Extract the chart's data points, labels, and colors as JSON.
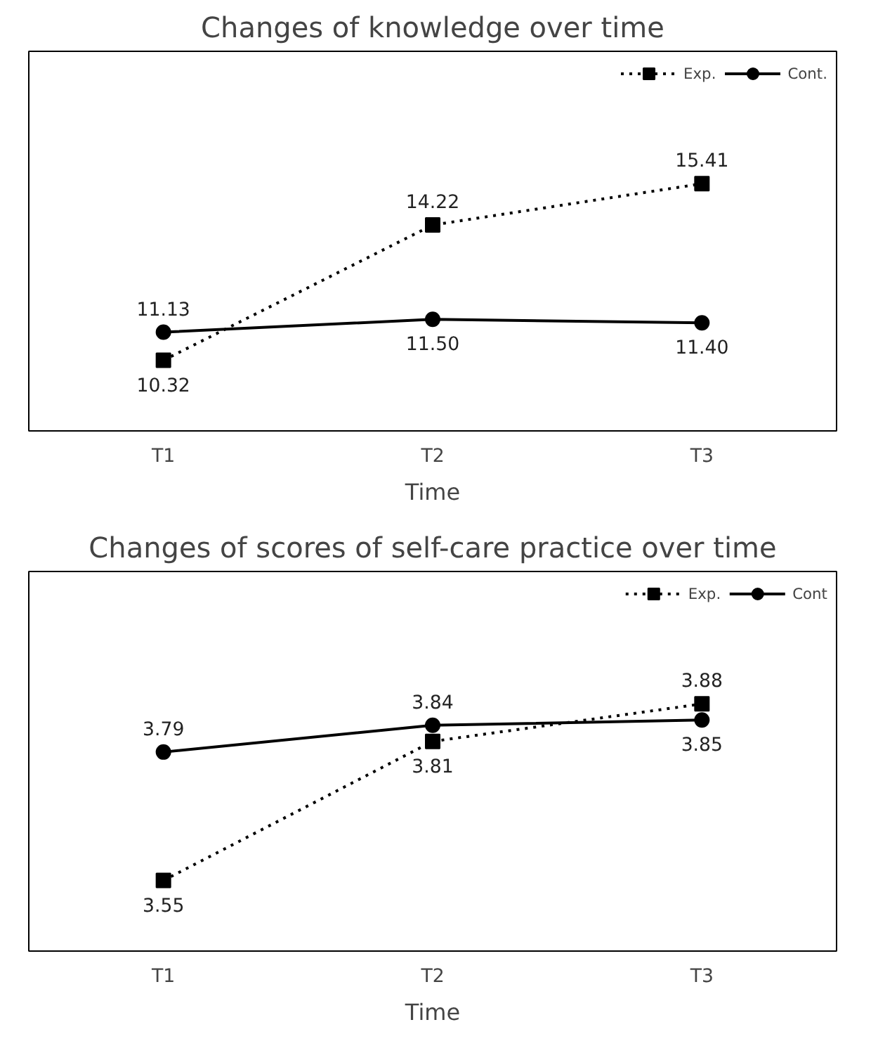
{
  "chart_data": [
    {
      "type": "line",
      "title": "Changes of knowledge over time",
      "xlabel": "Time",
      "categories": [
        "T1",
        "T2",
        "T3"
      ],
      "legend": "top right",
      "grid": false,
      "series": [
        {
          "name": "Exp.",
          "color": "#000000",
          "values": [
            10.32,
            14.22,
            15.41
          ],
          "value_labels": [
            "10.32",
            "14.22",
            "15.41"
          ],
          "marker": "square",
          "line_style": "dotted"
        },
        {
          "name": "Cont.",
          "color": "#000000",
          "values": [
            11.13,
            11.5,
            11.4
          ],
          "value_labels": [
            "11.13",
            "11.50",
            "11.40"
          ],
          "marker": "circle",
          "line_style": "solid"
        }
      ]
    },
    {
      "type": "line",
      "title": "Changes of scores of self-care practice over time",
      "xlabel": "Time",
      "categories": [
        "T1",
        "T2",
        "T3"
      ],
      "legend": "top right",
      "grid": false,
      "series": [
        {
          "name": "Exp.",
          "color": "#000000",
          "values": [
            3.55,
            3.81,
            3.88
          ],
          "value_labels": [
            "3.55",
            "3.81",
            "3.88"
          ],
          "marker": "square",
          "line_style": "dotted"
        },
        {
          "name": "Cont",
          "color": "#000000",
          "values": [
            3.79,
            3.84,
            3.85
          ],
          "value_labels": [
            "3.79",
            "3.84",
            "3.85"
          ],
          "marker": "circle",
          "line_style": "solid"
        }
      ]
    }
  ]
}
